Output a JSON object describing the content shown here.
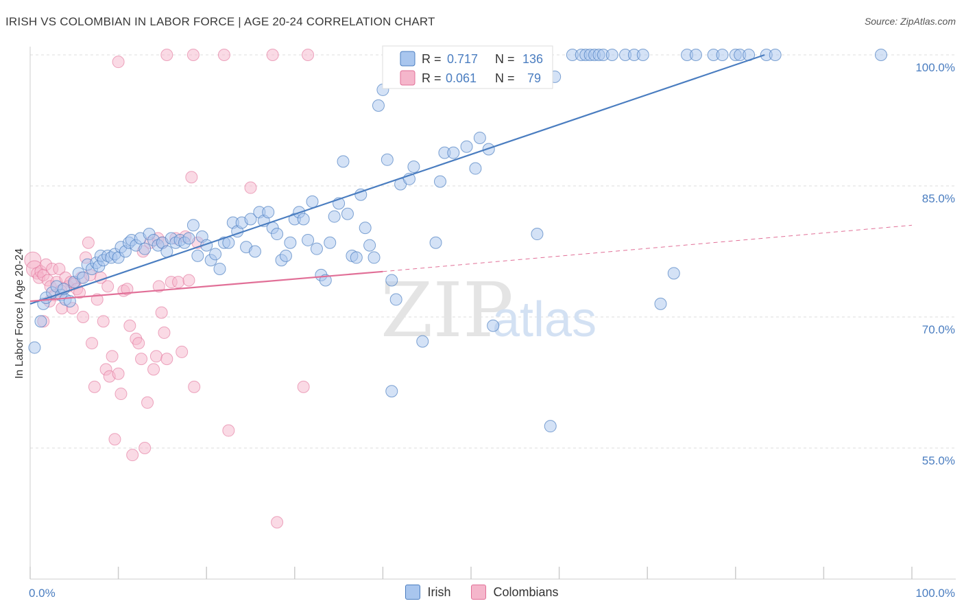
{
  "title": "IRISH VS COLOMBIAN IN LABOR FORCE | AGE 20-24 CORRELATION CHART",
  "source": "Source: ZipAtlas.com",
  "watermark": {
    "zip": "ZIP",
    "atlas": "atlas"
  },
  "colors": {
    "irish": "#4a7dc0",
    "irish_fill": "#a9c6ee",
    "colombians": "#e16f97",
    "colombians_fill": "#f5b6cb",
    "grid": "#dddddd",
    "axis": "#cccccc",
    "tick_text": "#4a7dc0"
  },
  "legend": {
    "irish": {
      "r_label": "R =",
      "r_value": "0.717",
      "n_label": "N =",
      "n_value": "136"
    },
    "colombians": {
      "r_label": "R =",
      "r_value": "0.061",
      "n_label": "N =",
      "n_value": "79"
    }
  },
  "bottom_legend": {
    "irish": "Irish",
    "colombians": "Colombians"
  },
  "chart_data": {
    "type": "scatter",
    "title": "IRISH VS COLOMBIAN IN LABOR FORCE | AGE 20-24 CORRELATION CHART",
    "xlabel": "",
    "ylabel": "In Labor Force | Age 20-24",
    "xlim": [
      0,
      100
    ],
    "ylim": [
      42,
      102
    ],
    "x_tick_labels": {
      "min": "0.0%",
      "max": "100.0%"
    },
    "y_ticks": [
      {
        "value": 55,
        "label": "55.0%"
      },
      {
        "value": 70,
        "label": "70.0%"
      },
      {
        "value": 85,
        "label": "85.0%"
      },
      {
        "value": 100,
        "label": "100.0%"
      }
    ],
    "series": [
      {
        "name": "Irish",
        "trend": {
          "x": [
            0,
            83.3
          ],
          "y": [
            71.5,
            100
          ]
        },
        "points": [
          [
            0.5,
            66.5
          ],
          [
            1.2,
            69.5
          ],
          [
            1.5,
            71.5
          ],
          [
            1.8,
            72.2
          ],
          [
            2.5,
            72.8
          ],
          [
            3.0,
            73.5
          ],
          [
            3.5,
            72.5
          ],
          [
            3.8,
            73.2
          ],
          [
            4.0,
            72.0
          ],
          [
            4.5,
            71.8
          ],
          [
            5.0,
            74.0
          ],
          [
            5.5,
            75.0
          ],
          [
            6.0,
            74.5
          ],
          [
            6.5,
            76.0
          ],
          [
            7.0,
            75.5
          ],
          [
            7.5,
            76.2
          ],
          [
            7.8,
            75.8
          ],
          [
            8.0,
            77.0
          ],
          [
            8.3,
            76.5
          ],
          [
            8.8,
            77.0
          ],
          [
            9.2,
            76.8
          ],
          [
            9.6,
            77.2
          ],
          [
            10.0,
            76.8
          ],
          [
            10.3,
            78.0
          ],
          [
            10.8,
            77.5
          ],
          [
            11.2,
            78.5
          ],
          [
            11.5,
            78.8
          ],
          [
            12.0,
            78.2
          ],
          [
            12.5,
            79.0
          ],
          [
            13.0,
            77.8
          ],
          [
            13.5,
            79.5
          ],
          [
            14.0,
            78.8
          ],
          [
            14.5,
            78.2
          ],
          [
            15.0,
            78.5
          ],
          [
            15.5,
            77.5
          ],
          [
            16.0,
            79.0
          ],
          [
            16.5,
            78.5
          ],
          [
            17.0,
            78.8
          ],
          [
            17.5,
            78.5
          ],
          [
            18.0,
            79.0
          ],
          [
            18.5,
            80.5
          ],
          [
            19.0,
            77.0
          ],
          [
            19.5,
            79.2
          ],
          [
            20.0,
            78.2
          ],
          [
            20.5,
            76.5
          ],
          [
            21.0,
            77.2
          ],
          [
            21.5,
            75.5
          ],
          [
            22.0,
            78.5
          ],
          [
            22.5,
            78.5
          ],
          [
            23.0,
            80.8
          ],
          [
            23.5,
            79.8
          ],
          [
            24.0,
            80.8
          ],
          [
            24.5,
            78.0
          ],
          [
            25.0,
            81.2
          ],
          [
            25.5,
            77.5
          ],
          [
            26.0,
            82.0
          ],
          [
            26.5,
            81.0
          ],
          [
            27.0,
            82.0
          ],
          [
            27.5,
            80.2
          ],
          [
            28.0,
            79.5
          ],
          [
            28.5,
            76.5
          ],
          [
            29.0,
            77.0
          ],
          [
            29.5,
            78.5
          ],
          [
            30.0,
            81.2
          ],
          [
            30.5,
            82.0
          ],
          [
            31.0,
            81.2
          ],
          [
            31.5,
            78.8
          ],
          [
            32.0,
            83.2
          ],
          [
            32.5,
            77.8
          ],
          [
            33.0,
            74.8
          ],
          [
            33.5,
            74.2
          ],
          [
            34.0,
            78.5
          ],
          [
            34.5,
            81.5
          ],
          [
            35.0,
            83.0
          ],
          [
            35.5,
            87.8
          ],
          [
            36.0,
            81.8
          ],
          [
            36.5,
            77.0
          ],
          [
            37.0,
            76.8
          ],
          [
            37.5,
            84.0
          ],
          [
            38.0,
            80.2
          ],
          [
            38.5,
            78.2
          ],
          [
            39.0,
            76.8
          ],
          [
            39.5,
            94.2
          ],
          [
            40.5,
            88.0
          ],
          [
            41.0,
            74.2
          ],
          [
            41.5,
            72.0
          ],
          [
            42.0,
            85.2
          ],
          [
            43.0,
            85.8
          ],
          [
            43.5,
            87.2
          ],
          [
            44.0,
            97.5
          ],
          [
            44.5,
            67.2
          ],
          [
            45.0,
            97.8
          ],
          [
            46.0,
            78.5
          ],
          [
            46.5,
            85.5
          ],
          [
            47.0,
            88.8
          ],
          [
            48.0,
            88.8
          ],
          [
            48.5,
            98.0
          ],
          [
            49.5,
            89.5
          ],
          [
            50.5,
            87.0
          ],
          [
            51.0,
            90.5
          ],
          [
            52.0,
            89.2
          ],
          [
            52.5,
            69.0
          ],
          [
            53.5,
            97.5
          ],
          [
            54.0,
            97.8
          ],
          [
            55.0,
            100.0
          ],
          [
            56.0,
            100.0
          ],
          [
            57.0,
            100.0
          ],
          [
            57.5,
            79.5
          ],
          [
            58.5,
            100.0
          ],
          [
            59.0,
            57.5
          ],
          [
            59.5,
            97.5
          ],
          [
            61.5,
            100.0
          ],
          [
            62.5,
            100.0
          ],
          [
            63.0,
            100.0
          ],
          [
            63.5,
            100.0
          ],
          [
            64.0,
            100.0
          ],
          [
            64.5,
            100.0
          ],
          [
            65.0,
            100.0
          ],
          [
            66.0,
            100.0
          ],
          [
            67.5,
            100.0
          ],
          [
            68.5,
            100.0
          ],
          [
            69.5,
            100.0
          ],
          [
            71.5,
            71.5
          ],
          [
            73.0,
            75.0
          ],
          [
            74.5,
            100.0
          ],
          [
            75.5,
            100.0
          ],
          [
            77.5,
            100.0
          ],
          [
            78.5,
            100.0
          ],
          [
            80.0,
            100.0
          ],
          [
            80.5,
            100.0
          ],
          [
            81.5,
            100.0
          ],
          [
            83.5,
            100.0
          ],
          [
            84.5,
            100.0
          ],
          [
            96.5,
            100.0
          ],
          [
            41.0,
            61.5
          ],
          [
            40.0,
            96.0
          ]
        ]
      },
      {
        "name": "Colombians",
        "trend": {
          "x": [
            0,
            40
          ],
          "y": [
            71.8,
            75.2
          ]
        },
        "trend_dashed": {
          "x": [
            40,
            100
          ],
          "y": [
            75.2,
            80.5
          ]
        },
        "points": [
          [
            0.3,
            76.5
          ],
          [
            0.5,
            75.5
          ],
          [
            0.8,
            75.0
          ],
          [
            1.0,
            74.5
          ],
          [
            1.2,
            75.2
          ],
          [
            1.5,
            74.8
          ],
          [
            1.8,
            76.0
          ],
          [
            2.0,
            74.2
          ],
          [
            2.3,
            73.5
          ],
          [
            2.5,
            75.5
          ],
          [
            2.8,
            72.5
          ],
          [
            3.0,
            74.0
          ],
          [
            3.3,
            75.5
          ],
          [
            3.6,
            71.0
          ],
          [
            4.0,
            74.5
          ],
          [
            4.3,
            73.5
          ],
          [
            4.6,
            74.0
          ],
          [
            5.0,
            73.8
          ],
          [
            5.3,
            73.2
          ],
          [
            5.6,
            72.8
          ],
          [
            6.0,
            70.0
          ],
          [
            6.3,
            76.8
          ],
          [
            6.6,
            78.5
          ],
          [
            7.0,
            67.0
          ],
          [
            7.3,
            62.0
          ],
          [
            7.6,
            72.0
          ],
          [
            8.0,
            74.5
          ],
          [
            8.3,
            69.5
          ],
          [
            8.6,
            64.0
          ],
          [
            9.0,
            63.2
          ],
          [
            9.3,
            65.5
          ],
          [
            9.6,
            56.0
          ],
          [
            10.0,
            63.5
          ],
          [
            10.3,
            61.2
          ],
          [
            10.6,
            73.0
          ],
          [
            11.0,
            73.2
          ],
          [
            11.3,
            69.0
          ],
          [
            11.6,
            54.2
          ],
          [
            12.0,
            67.5
          ],
          [
            12.3,
            67.0
          ],
          [
            12.6,
            65.2
          ],
          [
            13.0,
            55.0
          ],
          [
            13.3,
            60.2
          ],
          [
            13.6,
            78.5
          ],
          [
            14.0,
            64.0
          ],
          [
            14.3,
            65.5
          ],
          [
            14.6,
            73.5
          ],
          [
            14.9,
            70.5
          ],
          [
            15.2,
            68.2
          ],
          [
            15.5,
            65.2
          ],
          [
            16.0,
            74.0
          ],
          [
            16.5,
            79.0
          ],
          [
            16.8,
            74.0
          ],
          [
            17.2,
            66.0
          ],
          [
            17.6,
            79.2
          ],
          [
            18.0,
            74.2
          ],
          [
            18.3,
            86.0
          ],
          [
            18.6,
            62.0
          ],
          [
            19.0,
            78.5
          ],
          [
            1.5,
            69.5
          ],
          [
            2.2,
            71.8
          ],
          [
            4.8,
            71.0
          ],
          [
            5.8,
            74.5
          ],
          [
            10.0,
            99.2
          ],
          [
            14.5,
            79.0
          ],
          [
            15.0,
            78.5
          ],
          [
            15.5,
            100.0
          ],
          [
            18.5,
            100.0
          ],
          [
            22.0,
            100.0
          ],
          [
            22.5,
            57.0
          ],
          [
            25.0,
            84.8
          ],
          [
            27.5,
            100.0
          ],
          [
            28.0,
            46.5
          ],
          [
            31.0,
            62.0
          ],
          [
            31.5,
            100.0
          ],
          [
            3.5,
            73.0
          ],
          [
            8.8,
            73.5
          ],
          [
            12.8,
            77.5
          ],
          [
            6.8,
            74.8
          ]
        ]
      }
    ]
  }
}
